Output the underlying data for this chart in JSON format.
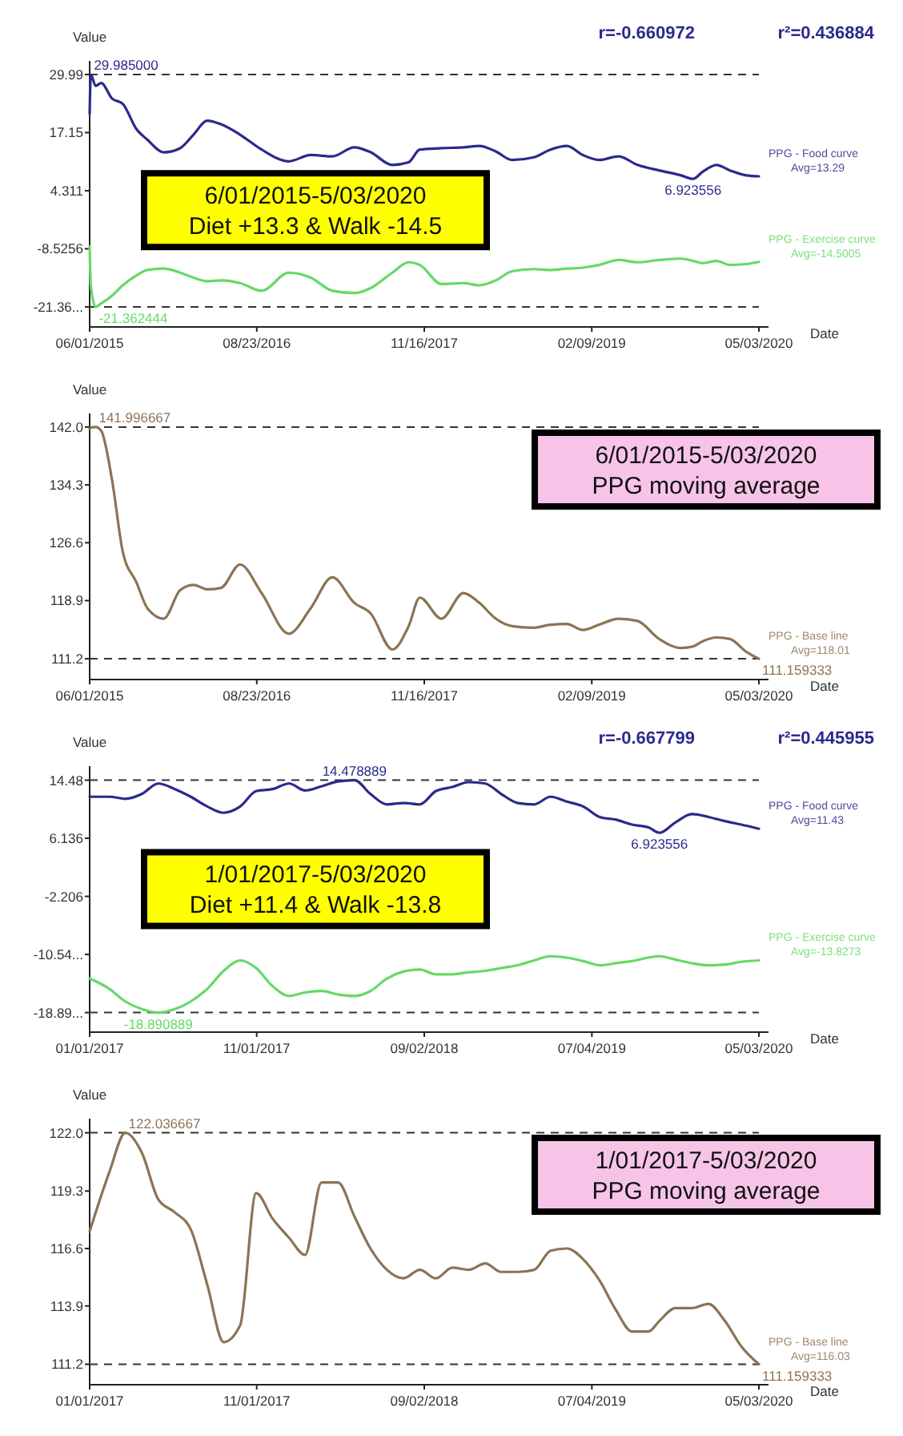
{
  "chart_data": [
    {
      "type": "line",
      "title": "6/01/2015-5/03/2020",
      "subtitle": "Diet +13.3 & Walk -14.5",
      "xlabel": "Date",
      "ylabel": "Value",
      "x": [
        "2015-06-01",
        "2015-06-04",
        "2015-06-17",
        "2015-07-02",
        "2015-07-31",
        "2015-08-29",
        "2015-10-05",
        "2015-11-03",
        "2015-12-17",
        "2016-01-30",
        "2016-03-06",
        "2016-04-12",
        "2016-05-19",
        "2016-07-09",
        "2016-09-05",
        "2016-11-17",
        "2017-01-15",
        "2017-03-14",
        "2017-05-12",
        "2017-06-25",
        "2017-08-22",
        "2017-10-05",
        "2017-11-04",
        "2018-01-01",
        "2018-03-01",
        "2018-04-13",
        "2018-05-27",
        "2018-07-10",
        "2018-09-07",
        "2018-10-21",
        "2018-12-04",
        "2019-01-16",
        "2019-03-01",
        "2019-04-22",
        "2019-06-12",
        "2019-08-09",
        "2019-10-07",
        "2019-11-08",
        "2019-12-04",
        "2020-01-10",
        "2020-02-15",
        "2020-03-30",
        "2020-05-03"
      ],
      "series": [
        {
          "name": "PPG - Food curve",
          "color": "#2a2a8c",
          "values": [
            21.3,
            29.985,
            27.5,
            28.1,
            24.7,
            23.5,
            17.9,
            15.6,
            12.8,
            13.7,
            16.7,
            19.8,
            19.0,
            16.7,
            13.4,
            10.8,
            12.2,
            11.9,
            13.9,
            12.8,
            10.0,
            10.6,
            13.4,
            13.7,
            13.9,
            14.2,
            13.0,
            11.1,
            11.7,
            13.4,
            14.2,
            12.2,
            11.1,
            11.9,
            10.0,
            8.8,
            7.7,
            6.923556,
            8.5,
            10.0,
            8.8,
            7.7,
            7.5
          ]
        },
        {
          "name": "PPG - Exercise curve",
          "color": "#66d966",
          "values": [
            -8.0,
            -16.6,
            -21.362444,
            -20.6,
            -18.9,
            -16.6,
            -14.4,
            -13.2,
            -12.9,
            -13.8,
            -14.9,
            -15.7,
            -15.5,
            -16.1,
            -17.8,
            -13.8,
            -14.9,
            -17.8,
            -18.3,
            -17.2,
            -13.8,
            -11.5,
            -12.1,
            -16.3,
            -16.1,
            -16.6,
            -15.5,
            -13.5,
            -13.0,
            -13.2,
            -12.9,
            -12.7,
            -12.1,
            -11.0,
            -11.5,
            -11.0,
            -10.7,
            -11.2,
            -11.7,
            -11.2,
            -12.1,
            -11.9,
            -11.4
          ]
        }
      ],
      "xlim": [
        "2015-06-01",
        "2020-05-03"
      ],
      "xticks": [
        {
          "value": "2015-06-01",
          "label": "06/01/2015"
        },
        {
          "value": "2016-08-23",
          "label": "08/23/2016"
        },
        {
          "value": "2017-11-16",
          "label": "11/16/2017"
        },
        {
          "value": "2019-02-09",
          "label": "02/09/2019"
        },
        {
          "value": "2020-05-03",
          "label": "05/03/2020"
        }
      ],
      "ylim": [
        -25.8,
        33
      ],
      "yticks": [
        {
          "value": 29.985,
          "label": "29.99"
        },
        17.15,
        4.311,
        -8.5256,
        {
          "value": -21.362444,
          "label": "-21.36..."
        }
      ],
      "ref_lines": [
        {
          "axis": "y",
          "value": 29.985,
          "line_style": "dashed"
        },
        {
          "axis": "y",
          "value": -21.362444,
          "line_style": "dashed"
        }
      ],
      "annotations": [
        "r=-0.660972",
        "r²=0.436884",
        {
          "text": "29.985000",
          "x": "2015-06-04",
          "y": 29.985
        },
        {
          "text": "-21.362444",
          "x": "2015-06-17",
          "y": -21.362444
        },
        {
          "text": "6.923556",
          "x": "2019-11-08",
          "y": 6.923556
        },
        "Avg=13.29",
        "Avg=-14.5005"
      ]
    },
    {
      "type": "line",
      "title": "6/01/2015-5/03/2020",
      "subtitle": "PPG moving average",
      "xlabel": "Date",
      "ylabel": "Value",
      "x": [
        "2015-06-01",
        "2015-06-04",
        "2015-06-17",
        "2015-07-02",
        "2015-07-31",
        "2015-08-29",
        "2015-10-05",
        "2015-11-03",
        "2015-12-17",
        "2016-01-30",
        "2016-03-06",
        "2016-04-12",
        "2016-05-19",
        "2016-07-09",
        "2016-09-05",
        "2016-11-17",
        "2017-01-15",
        "2017-03-14",
        "2017-05-12",
        "2017-06-25",
        "2017-08-22",
        "2017-10-05",
        "2017-11-04",
        "2018-01-01",
        "2018-03-01",
        "2018-04-13",
        "2018-05-27",
        "2018-07-10",
        "2018-09-07",
        "2018-10-21",
        "2018-12-04",
        "2019-01-16",
        "2019-03-01",
        "2019-04-22",
        "2019-06-12",
        "2019-08-09",
        "2019-10-07",
        "2019-11-08",
        "2019-12-04",
        "2020-01-10",
        "2020-02-15",
        "2020-03-30",
        "2020-05-03"
      ],
      "series": [
        {
          "name": "PPG - Base line",
          "color": "#8c7355",
          "values": [
            141.8,
            141.9,
            141.996667,
            141.5,
            135.0,
            125.4,
            121.3,
            117.9,
            116.5,
            120.3,
            121.0,
            120.4,
            120.6,
            123.7,
            119.9,
            114.5,
            117.9,
            122.0,
            118.6,
            117.2,
            112.4,
            115.5,
            119.3,
            116.5,
            119.9,
            118.6,
            116.5,
            115.5,
            115.3,
            115.7,
            115.8,
            115.0,
            115.7,
            116.5,
            116.2,
            113.8,
            112.6,
            112.8,
            113.5,
            114.0,
            113.8,
            112.1,
            111.159333
          ]
        }
      ],
      "xlim": [
        "2015-06-01",
        "2020-05-03"
      ],
      "xticks": [
        {
          "value": "2015-06-01",
          "label": "06/01/2015"
        },
        {
          "value": "2016-08-23",
          "label": "08/23/2016"
        },
        {
          "value": "2017-11-16",
          "label": "11/16/2017"
        },
        {
          "value": "2019-02-09",
          "label": "02/09/2019"
        },
        {
          "value": "2020-05-03",
          "label": "05/03/2020"
        }
      ],
      "ylim": [
        108.4,
        143.8
      ],
      "yticks": [
        {
          "value": 141.996667,
          "label": "142.0"
        },
        134.3,
        126.6,
        118.9,
        {
          "value": 111.159333,
          "label": "111.2"
        }
      ],
      "ref_lines": [
        {
          "axis": "y",
          "value": 141.996667,
          "line_style": "dashed"
        },
        {
          "axis": "y",
          "value": 111.159333,
          "line_style": "dashed"
        }
      ],
      "annotations": [
        {
          "text": "141.996667",
          "x": "2015-06-17",
          "y": 141.996667
        },
        {
          "text": "111.159333",
          "x": "2020-05-03",
          "y": 111.159333
        },
        "Avg=118.01"
      ]
    },
    {
      "type": "line",
      "title": "1/01/2017-5/03/2020",
      "subtitle": "Diet +11.4 & Walk -13.8",
      "xlabel": "Date",
      "ylabel": "Value",
      "x": [
        "2017-01-01",
        "2017-02-06",
        "2017-03-07",
        "2017-04-06",
        "2017-05-06",
        "2017-06-05",
        "2017-07-04",
        "2017-08-03",
        "2017-09-02",
        "2017-10-02",
        "2017-10-31",
        "2017-11-30",
        "2017-12-30",
        "2018-01-28",
        "2018-02-27",
        "2018-03-29",
        "2018-04-28",
        "2018-05-27",
        "2018-06-26",
        "2018-07-26",
        "2018-08-25",
        "2018-09-23",
        "2018-10-23",
        "2018-11-22",
        "2018-12-22",
        "2019-01-20",
        "2019-02-19",
        "2019-03-21",
        "2019-04-20",
        "2019-05-19",
        "2019-06-18",
        "2019-07-18",
        "2019-08-17",
        "2019-09-15",
        "2019-10-15",
        "2019-11-04",
        "2019-12-03",
        "2020-01-02",
        "2020-02-01",
        "2020-03-02",
        "2020-04-01",
        "2020-05-03"
      ],
      "series": [
        {
          "name": "PPG - Food curve",
          "color": "#2a2a8c",
          "values": [
            12.1,
            12.1,
            11.8,
            12.5,
            14.0,
            13.2,
            12.1,
            10.7,
            9.8,
            10.7,
            12.9,
            13.2,
            14.0,
            13.0,
            13.6,
            14.3,
            14.478889,
            12.5,
            11.0,
            11.2,
            11.0,
            12.9,
            13.5,
            14.2,
            14.0,
            12.5,
            11.2,
            11.0,
            12.1,
            11.4,
            10.7,
            9.2,
            8.8,
            8.1,
            7.7,
            6.923556,
            8.4,
            9.6,
            9.2,
            8.6,
            8.1,
            7.5
          ]
        },
        {
          "name": "PPG - Exercise curve",
          "color": "#66d966",
          "values": [
            -14.0,
            -15.5,
            -17.3,
            -18.4,
            -18.890889,
            -18.4,
            -17.3,
            -15.5,
            -12.9,
            -11.4,
            -12.5,
            -15.1,
            -16.5,
            -16.0,
            -15.8,
            -16.3,
            -16.5,
            -15.8,
            -14.0,
            -13.0,
            -12.7,
            -13.4,
            -13.4,
            -13.1,
            -12.9,
            -12.5,
            -12.1,
            -11.4,
            -10.8,
            -11.0,
            -11.5,
            -12.1,
            -11.8,
            -11.5,
            -11.0,
            -10.8,
            -11.3,
            -11.8,
            -12.1,
            -12.0,
            -11.6,
            -11.4
          ]
        }
      ],
      "xlim": [
        "2017-01-01",
        "2020-05-03"
      ],
      "xticks": [
        {
          "value": "2017-01-01",
          "label": "01/01/2017"
        },
        {
          "value": "2017-11-01",
          "label": "11/01/2017"
        },
        {
          "value": "2018-09-02",
          "label": "09/02/2018"
        },
        {
          "value": "2019-07-04",
          "label": "07/04/2019"
        },
        {
          "value": "2020-05-03",
          "label": "05/03/2020"
        }
      ],
      "ylim": [
        -21.7,
        16.5
      ],
      "yticks": [
        {
          "value": 14.478889,
          "label": "14.48"
        },
        6.136,
        -2.206,
        {
          "value": -10.5475,
          "label": "-10.54..."
        },
        {
          "value": -18.890889,
          "label": "-18.89..."
        }
      ],
      "ref_lines": [
        {
          "axis": "y",
          "value": 14.478889,
          "line_style": "dashed"
        },
        {
          "axis": "y",
          "value": -18.890889,
          "line_style": "dashed"
        }
      ],
      "annotations": [
        "r=-0.667799",
        "r²=0.445955",
        {
          "text": "14.478889",
          "x": "2018-04-28",
          "y": 14.478889
        },
        {
          "text": "-18.890889",
          "x": "2017-05-06",
          "y": -18.890889
        },
        {
          "text": "6.923556",
          "x": "2019-11-04",
          "y": 6.923556
        },
        "Avg=11.43",
        "Avg=-13.8273"
      ]
    },
    {
      "type": "line",
      "title": "1/01/2017-5/03/2020",
      "subtitle": "PPG moving average",
      "xlabel": "Date",
      "ylabel": "Value",
      "x": [
        "2017-01-01",
        "2017-02-06",
        "2017-03-07",
        "2017-04-06",
        "2017-05-06",
        "2017-06-05",
        "2017-07-04",
        "2017-08-03",
        "2017-09-02",
        "2017-10-02",
        "2017-10-31",
        "2017-11-30",
        "2017-12-30",
        "2018-01-28",
        "2018-02-27",
        "2018-03-29",
        "2018-04-28",
        "2018-05-27",
        "2018-06-26",
        "2018-07-26",
        "2018-08-25",
        "2018-09-23",
        "2018-10-23",
        "2018-11-22",
        "2018-12-22",
        "2019-01-20",
        "2019-02-19",
        "2019-03-21",
        "2019-04-20",
        "2019-05-19",
        "2019-06-18",
        "2019-07-18",
        "2019-08-17",
        "2019-09-15",
        "2019-10-15",
        "2019-11-04",
        "2019-12-03",
        "2020-01-02",
        "2020-02-01",
        "2020-03-02",
        "2020-04-01",
        "2020-05-03"
      ],
      "series": [
        {
          "name": "PPG - Base line",
          "color": "#8c7355",
          "values": [
            117.4,
            120.2,
            122.036667,
            121.1,
            118.9,
            118.3,
            117.5,
            114.9,
            112.2,
            113.0,
            119.2,
            118.0,
            117.1,
            116.3,
            119.7,
            119.7,
            118.1,
            116.6,
            115.6,
            115.2,
            115.6,
            115.2,
            115.7,
            115.6,
            115.9,
            115.5,
            115.5,
            115.6,
            116.5,
            116.6,
            116.1,
            115.1,
            113.7,
            112.7,
            112.7,
            113.2,
            113.8,
            113.8,
            114.0,
            113.2,
            112.0,
            111.159333
          ]
        }
      ],
      "xlim": [
        "2017-01-01",
        "2020-05-03"
      ],
      "xticks": [
        {
          "value": "2017-01-01",
          "label": "01/01/2017"
        },
        {
          "value": "2017-11-01",
          "label": "11/01/2017"
        },
        {
          "value": "2018-09-02",
          "label": "09/02/2018"
        },
        {
          "value": "2019-07-04",
          "label": "07/04/2019"
        },
        {
          "value": "2020-05-03",
          "label": "05/03/2020"
        }
      ],
      "ylim": [
        110.2,
        122.7
      ],
      "yticks": [
        {
          "value": 122.036667,
          "label": "122.0"
        },
        119.3,
        116.6,
        113.9,
        {
          "value": 111.159333,
          "label": "111.2"
        }
      ],
      "ref_lines": [
        {
          "axis": "y",
          "value": 122.036667,
          "line_style": "dashed"
        },
        {
          "axis": "y",
          "value": 111.159333,
          "line_style": "dashed"
        }
      ],
      "annotations": [
        {
          "text": "122.036667",
          "x": "2017-03-07",
          "y": 122.036667
        },
        {
          "text": "111.159333",
          "x": "2020-05-03",
          "y": 111.159333
        },
        "Avg=116.03"
      ]
    }
  ]
}
